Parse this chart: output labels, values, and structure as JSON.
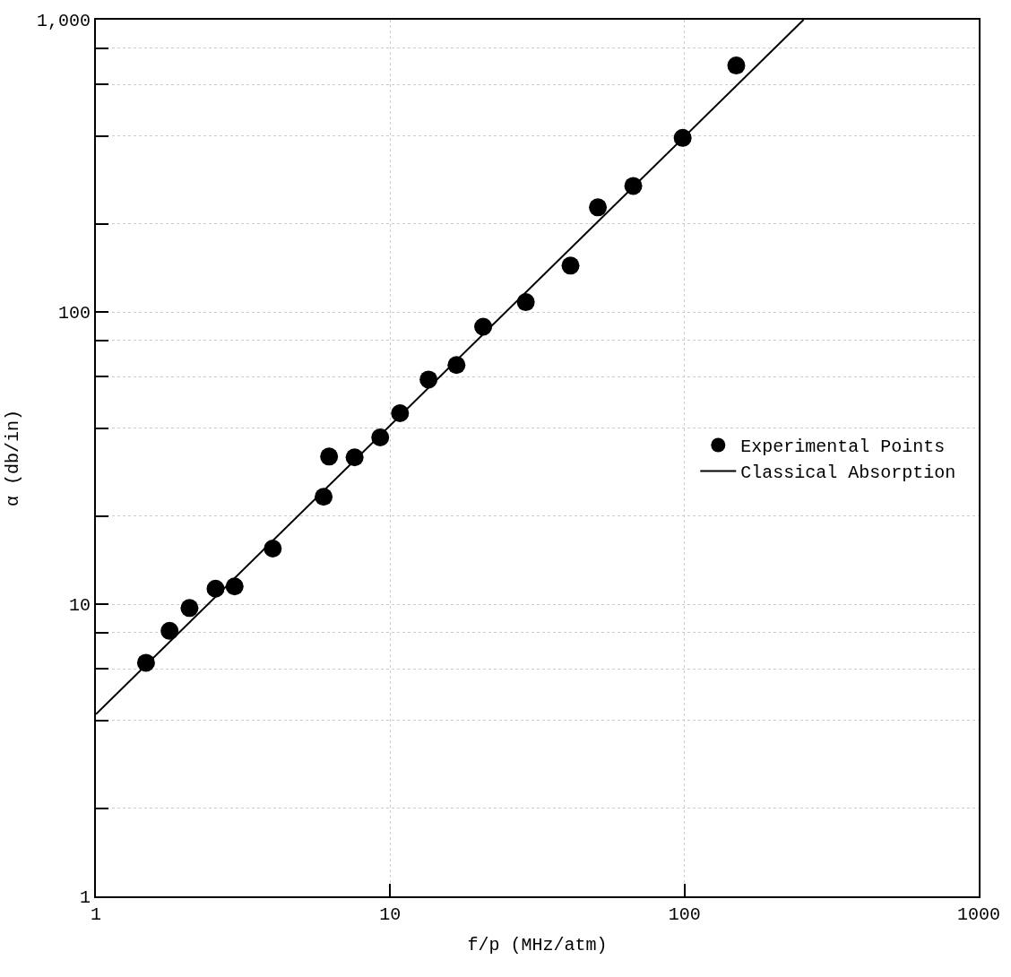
{
  "chart_data": {
    "type": "scatter",
    "xlabel": "f/p (MHz/atm)",
    "ylabel": "α (db/in)",
    "log": "xy",
    "xlim": [
      1,
      1000
    ],
    "ylim": [
      1,
      1000
    ],
    "xticks": [
      1,
      10,
      100,
      1000
    ],
    "yticks": [
      1,
      {
        "value": 2,
        "label": null
      },
      {
        "value": 4,
        "label": null
      },
      {
        "value": 6,
        "label": null
      },
      {
        "value": 8,
        "label": null
      },
      10,
      {
        "value": 20,
        "label": null
      },
      {
        "value": 40,
        "label": null
      },
      {
        "value": 60,
        "label": null
      },
      {
        "value": 80,
        "label": null
      },
      100,
      {
        "value": 200,
        "label": null
      },
      {
        "value": 400,
        "label": null
      },
      {
        "value": 600,
        "label": null
      },
      {
        "value": 800,
        "label": null
      },
      {
        "value": 1000,
        "label": "1,000"
      }
    ],
    "grid": true,
    "legend": "right",
    "series": [
      {
        "name": "Experimental Points",
        "marker": "circle",
        "color": "#000000",
        "x": [
          1.48,
          1.78,
          2.08,
          2.55,
          2.96,
          3.99,
          5.94,
          6.2,
          7.57,
          9.25,
          10.8,
          13.5,
          16.8,
          20.7,
          28.9,
          41,
          50.8,
          67,
          98.6,
          150
        ],
        "values": [
          6.3,
          8.1,
          9.7,
          11.3,
          11.5,
          15.5,
          23.3,
          32,
          31.8,
          37.2,
          45,
          58.7,
          65.8,
          89,
          108,
          144,
          228,
          270,
          394,
          697
        ]
      },
      {
        "name": "Classical Absorption",
        "type": "line",
        "color": "#000000",
        "marker": "none",
        "line_style": "solid",
        "x": [
          1,
          254
        ],
        "values": [
          4.2,
          1000
        ]
      }
    ]
  }
}
